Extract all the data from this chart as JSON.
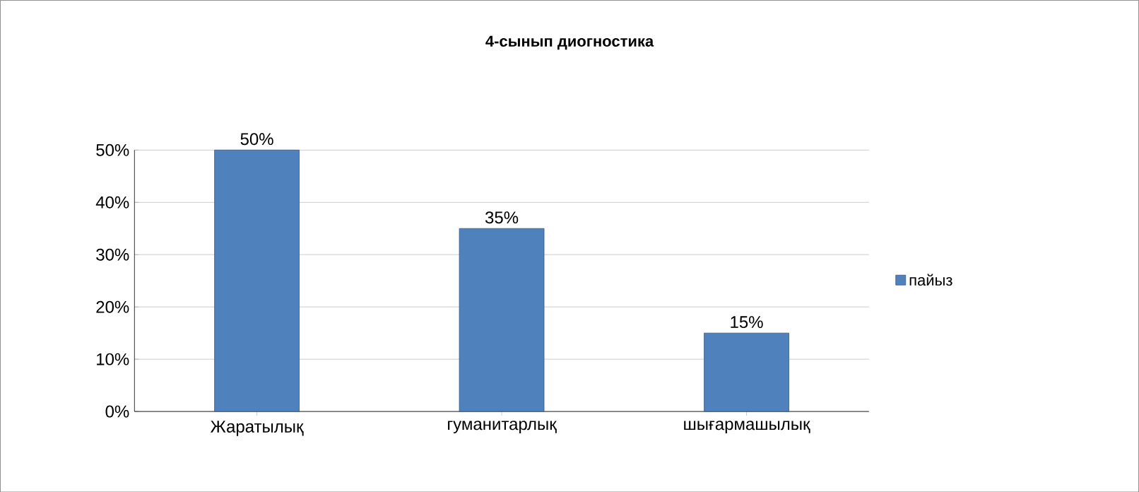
{
  "chart_data": {
    "type": "bar",
    "title": "4-сынып диогностика",
    "categories": [
      "Жаратылық",
      "гуманитарлық",
      "шығармашылық"
    ],
    "series": [
      {
        "name": "пайыз",
        "color": "#4f81bd",
        "values": [
          50,
          35,
          15
        ],
        "value_labels": [
          "50%",
          "35%",
          "15%"
        ]
      }
    ],
    "ylim": [
      0,
      50
    ],
    "yticks": [
      {
        "value": 0,
        "label": "0%"
      },
      {
        "value": 10,
        "label": "10%"
      },
      {
        "value": 20,
        "label": "20%"
      },
      {
        "value": 30,
        "label": "30%"
      },
      {
        "value": 40,
        "label": "40%"
      },
      {
        "value": 50,
        "label": "50%"
      }
    ],
    "grid": "y",
    "legend": "right"
  }
}
